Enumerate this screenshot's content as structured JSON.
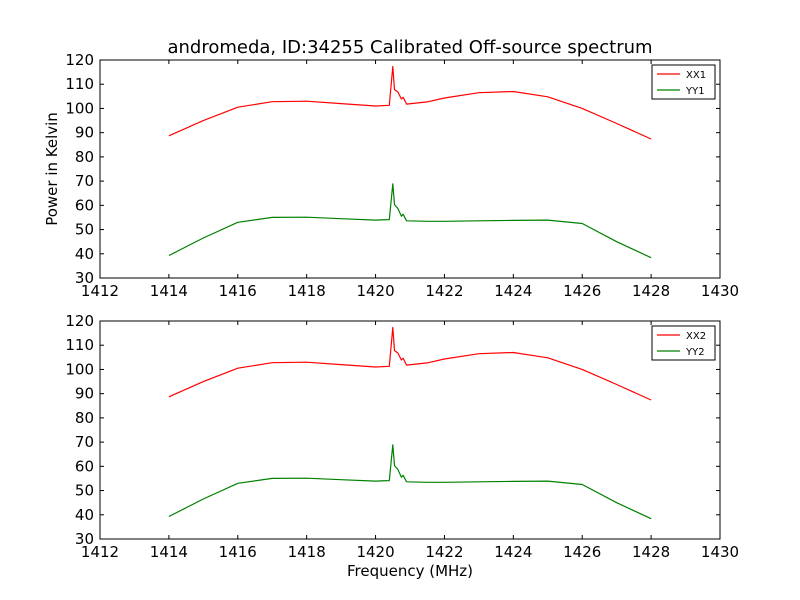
{
  "figure": {
    "title": "andromeda, ID:34255 Calibrated Off-source spectrum"
  },
  "chart_data": [
    {
      "type": "line",
      "title": "andromeda, ID:34255 Calibrated Off-source spectrum",
      "xlabel": "",
      "ylabel": "Power in Kelvin",
      "xlim": [
        1412,
        1430
      ],
      "ylim": [
        30,
        120
      ],
      "xticks": [
        "1412",
        "1414",
        "1416",
        "1418",
        "1420",
        "1422",
        "1424",
        "1426",
        "1428",
        "1430"
      ],
      "yticks": [
        "30",
        "40",
        "50",
        "60",
        "70",
        "80",
        "90",
        "100",
        "110",
        "120"
      ],
      "legend": "top-right",
      "grid": false,
      "series": [
        {
          "name": "XX1",
          "color": "#ff0000",
          "points": [
            [
              1414.0,
              88.7
            ],
            [
              1415.0,
              95.0
            ],
            [
              1416.0,
              100.5
            ],
            [
              1417.0,
              102.8
            ],
            [
              1418.0,
              103.0
            ],
            [
              1419.0,
              102.0
            ],
            [
              1420.0,
              101.0
            ],
            [
              1420.4,
              101.3
            ],
            [
              1420.5,
              117.3
            ],
            [
              1420.55,
              107.8
            ],
            [
              1420.65,
              106.8
            ],
            [
              1420.75,
              103.9
            ],
            [
              1420.8,
              104.6
            ],
            [
              1420.9,
              101.8
            ],
            [
              1421.5,
              102.7
            ],
            [
              1422.0,
              104.3
            ],
            [
              1423.0,
              106.5
            ],
            [
              1424.0,
              107.0
            ],
            [
              1425.0,
              104.8
            ],
            [
              1426.0,
              100.0
            ],
            [
              1427.0,
              93.8
            ],
            [
              1428.0,
              87.4
            ]
          ]
        },
        {
          "name": "YY1",
          "color": "#008000",
          "points": [
            [
              1414.0,
              39.3
            ],
            [
              1415.0,
              46.5
            ],
            [
              1416.0,
              53.0
            ],
            [
              1417.0,
              55.0
            ],
            [
              1418.0,
              55.1
            ],
            [
              1419.0,
              54.5
            ],
            [
              1420.0,
              53.9
            ],
            [
              1420.4,
              54.1
            ],
            [
              1420.5,
              68.9
            ],
            [
              1420.55,
              60.3
            ],
            [
              1420.65,
              58.7
            ],
            [
              1420.75,
              55.5
            ],
            [
              1420.8,
              56.3
            ],
            [
              1420.9,
              53.6
            ],
            [
              1421.5,
              53.4
            ],
            [
              1422.0,
              53.4
            ],
            [
              1423.0,
              53.6
            ],
            [
              1424.0,
              53.8
            ],
            [
              1425.0,
              53.9
            ],
            [
              1426.0,
              52.5
            ],
            [
              1427.0,
              45.0
            ],
            [
              1428.0,
              38.4
            ]
          ]
        }
      ]
    },
    {
      "type": "line",
      "title": "",
      "xlabel": "Frequency (MHz)",
      "ylabel": "",
      "xlim": [
        1412,
        1430
      ],
      "ylim": [
        30,
        120
      ],
      "xticks": [
        "1412",
        "1414",
        "1416",
        "1418",
        "1420",
        "1422",
        "1424",
        "1426",
        "1428",
        "1430"
      ],
      "yticks": [
        "30",
        "40",
        "50",
        "60",
        "70",
        "80",
        "90",
        "100",
        "110",
        "120"
      ],
      "legend": "top-right",
      "grid": false,
      "series": [
        {
          "name": "XX2",
          "color": "#ff0000",
          "points": [
            [
              1414.0,
              88.7
            ],
            [
              1415.0,
              95.0
            ],
            [
              1416.0,
              100.5
            ],
            [
              1417.0,
              102.8
            ],
            [
              1418.0,
              103.0
            ],
            [
              1419.0,
              102.0
            ],
            [
              1420.0,
              101.0
            ],
            [
              1420.4,
              101.3
            ],
            [
              1420.5,
              117.3
            ],
            [
              1420.55,
              107.8
            ],
            [
              1420.65,
              106.8
            ],
            [
              1420.75,
              103.9
            ],
            [
              1420.8,
              104.6
            ],
            [
              1420.9,
              101.8
            ],
            [
              1421.5,
              102.7
            ],
            [
              1422.0,
              104.3
            ],
            [
              1423.0,
              106.5
            ],
            [
              1424.0,
              107.0
            ],
            [
              1425.0,
              104.8
            ],
            [
              1426.0,
              100.0
            ],
            [
              1427.0,
              93.8
            ],
            [
              1428.0,
              87.4
            ]
          ]
        },
        {
          "name": "YY2",
          "color": "#008000",
          "points": [
            [
              1414.0,
              39.3
            ],
            [
              1415.0,
              46.5
            ],
            [
              1416.0,
              53.0
            ],
            [
              1417.0,
              55.0
            ],
            [
              1418.0,
              55.1
            ],
            [
              1419.0,
              54.5
            ],
            [
              1420.0,
              53.9
            ],
            [
              1420.4,
              54.1
            ],
            [
              1420.5,
              68.9
            ],
            [
              1420.55,
              60.3
            ],
            [
              1420.65,
              58.7
            ],
            [
              1420.75,
              55.5
            ],
            [
              1420.8,
              56.3
            ],
            [
              1420.9,
              53.6
            ],
            [
              1421.5,
              53.4
            ],
            [
              1422.0,
              53.4
            ],
            [
              1423.0,
              53.6
            ],
            [
              1424.0,
              53.8
            ],
            [
              1425.0,
              53.9
            ],
            [
              1426.0,
              52.5
            ],
            [
              1427.0,
              45.0
            ],
            [
              1428.0,
              38.4
            ]
          ]
        }
      ]
    }
  ]
}
